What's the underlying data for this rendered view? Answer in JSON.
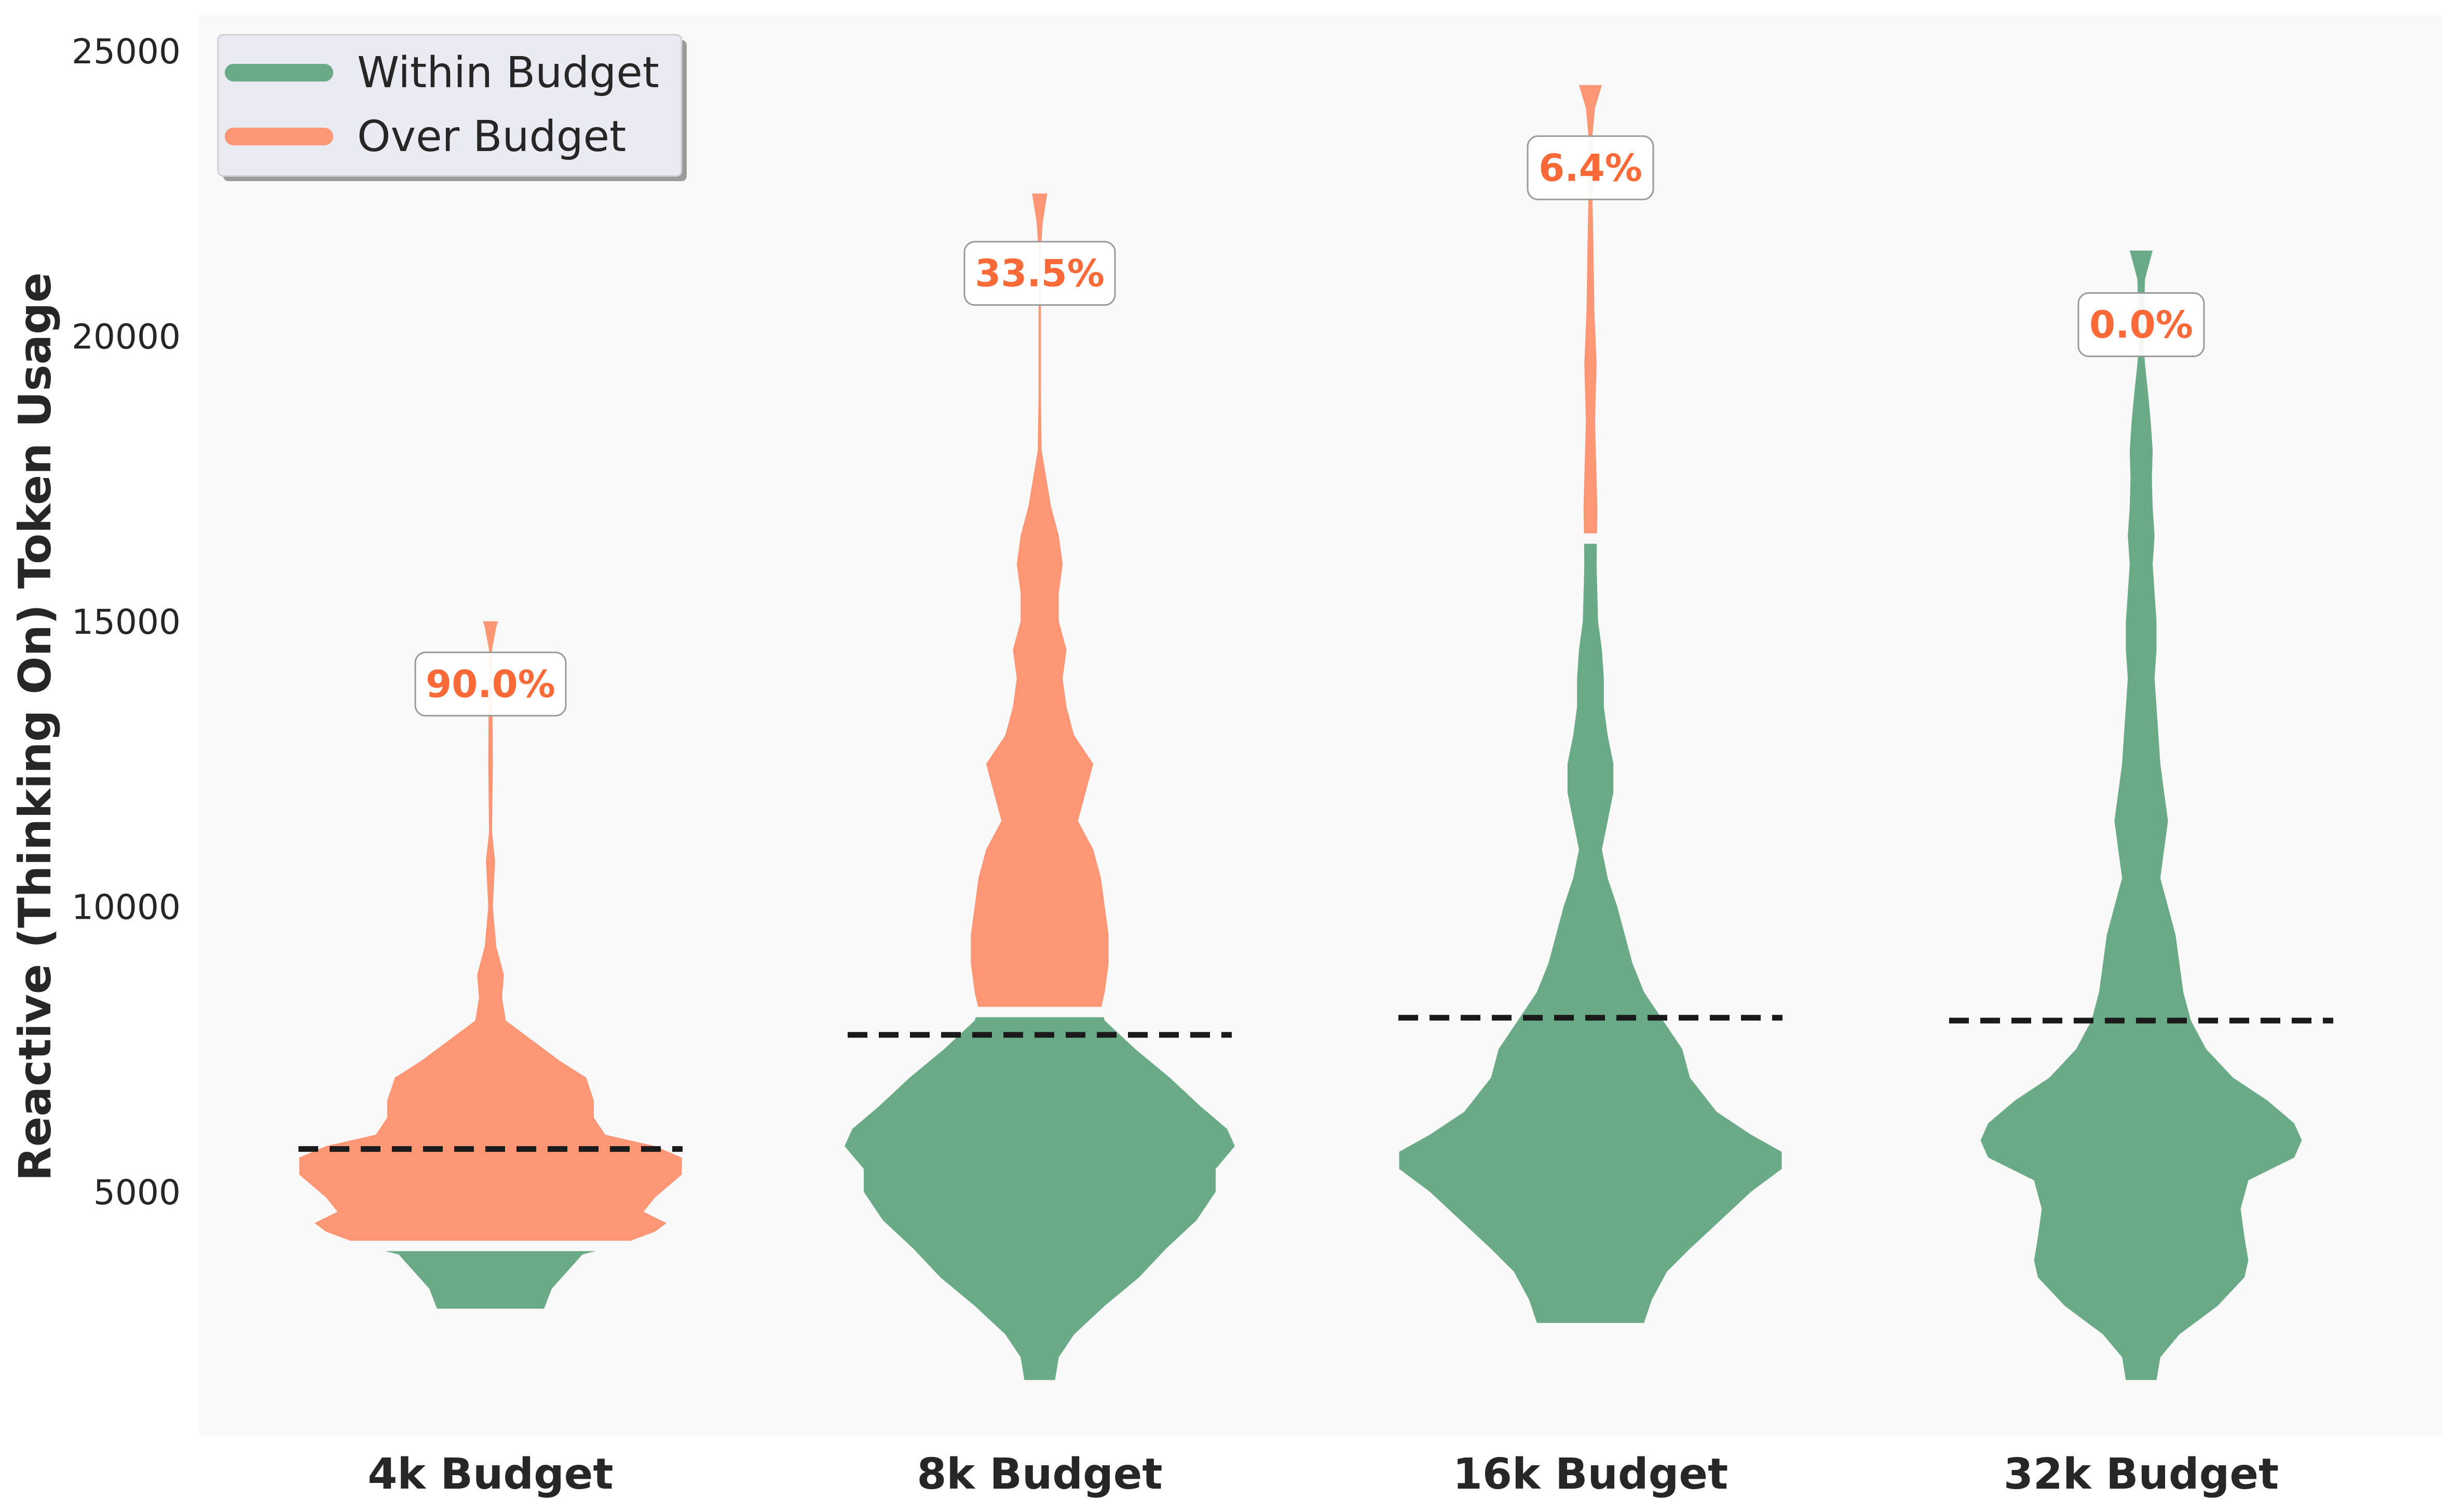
{
  "chart_data": {
    "type": "violin",
    "title": "",
    "xlabel": "",
    "ylabel": "Reactive (Thinking On) Token Usage",
    "ylim": [
      1000,
      25500
    ],
    "yticks": [
      5000,
      10000,
      15000,
      20000,
      25000
    ],
    "grid": false,
    "legend": {
      "placement": "top-left",
      "entries": [
        {
          "label": "Within Budget",
          "color": "#6aaa86"
        },
        {
          "label": "Over Budget",
          "color": "#fc9674"
        }
      ]
    },
    "colors": {
      "within": "#6aaa86",
      "over": "#fc9674",
      "pct_text": "#f96a38",
      "median_line": "#1a1a1a",
      "plot_bg": "#f9f9f9"
    },
    "categories": [
      {
        "label": "4k Budget",
        "over_budget_pct": "90.0%",
        "pct_label_y": 13900,
        "median": 5750,
        "budget_split": 4050,
        "min": 2950,
        "max": 15000,
        "profile": [
          [
            2950,
            0.14
          ],
          [
            3300,
            0.16
          ],
          [
            3600,
            0.2
          ],
          [
            3900,
            0.24
          ],
          [
            4050,
            0.33
          ],
          [
            4300,
            0.43
          ],
          [
            4450,
            0.46
          ],
          [
            4650,
            0.4
          ],
          [
            4900,
            0.43
          ],
          [
            5300,
            0.5
          ],
          [
            5600,
            0.5
          ],
          [
            5800,
            0.43
          ],
          [
            6000,
            0.3
          ],
          [
            6300,
            0.27
          ],
          [
            6600,
            0.27
          ],
          [
            7000,
            0.25
          ],
          [
            7300,
            0.18
          ],
          [
            7600,
            0.12
          ],
          [
            8000,
            0.04
          ],
          [
            8400,
            0.03
          ],
          [
            8800,
            0.035
          ],
          [
            9300,
            0.015
          ],
          [
            10000,
            0.006
          ],
          [
            10800,
            0.012
          ],
          [
            11300,
            0.004
          ],
          [
            12500,
            0.006
          ],
          [
            13500,
            0.005
          ],
          [
            14500,
            0.004
          ],
          [
            14900,
            0.015
          ],
          [
            15000,
            0.02
          ]
        ]
      },
      {
        "label": "8k Budget",
        "over_budget_pct": "33.5%",
        "pct_label_y": 21100,
        "median": 7750,
        "budget_split": 8150,
        "min": 1700,
        "max": 22500,
        "profile": [
          [
            1700,
            0.04
          ],
          [
            2100,
            0.05
          ],
          [
            2500,
            0.09
          ],
          [
            3000,
            0.17
          ],
          [
            3500,
            0.26
          ],
          [
            4000,
            0.33
          ],
          [
            4500,
            0.41
          ],
          [
            5000,
            0.46
          ],
          [
            5400,
            0.46
          ],
          [
            5800,
            0.51
          ],
          [
            6100,
            0.49
          ],
          [
            6500,
            0.42
          ],
          [
            7000,
            0.34
          ],
          [
            7500,
            0.25
          ],
          [
            8000,
            0.17
          ],
          [
            8200,
            0.16
          ],
          [
            8500,
            0.17
          ],
          [
            9000,
            0.18
          ],
          [
            9500,
            0.18
          ],
          [
            10000,
            0.17
          ],
          [
            10500,
            0.16
          ],
          [
            11000,
            0.14
          ],
          [
            11500,
            0.1
          ],
          [
            12000,
            0.12
          ],
          [
            12500,
            0.14
          ],
          [
            13000,
            0.09
          ],
          [
            13500,
            0.07
          ],
          [
            14000,
            0.06
          ],
          [
            14500,
            0.07
          ],
          [
            15000,
            0.05
          ],
          [
            15500,
            0.05
          ],
          [
            16000,
            0.06
          ],
          [
            16500,
            0.05
          ],
          [
            17000,
            0.03
          ],
          [
            18000,
            0.005
          ],
          [
            19000,
            0.003
          ],
          [
            20000,
            0.003
          ],
          [
            21500,
            0.003
          ],
          [
            22000,
            0.008
          ],
          [
            22500,
            0.02
          ]
        ]
      },
      {
        "label": "16k Budget",
        "over_budget_pct": "6.4%",
        "pct_label_y": 22950,
        "median": 8050,
        "budget_split": 16450,
        "min": 2700,
        "max": 24400,
        "profile": [
          [
            2700,
            0.14
          ],
          [
            3100,
            0.16
          ],
          [
            3600,
            0.2
          ],
          [
            4000,
            0.26
          ],
          [
            4500,
            0.34
          ],
          [
            5000,
            0.42
          ],
          [
            5400,
            0.5
          ],
          [
            5700,
            0.5
          ],
          [
            6000,
            0.42
          ],
          [
            6400,
            0.33
          ],
          [
            7000,
            0.26
          ],
          [
            7500,
            0.24
          ],
          [
            8000,
            0.19
          ],
          [
            8500,
            0.14
          ],
          [
            9000,
            0.11
          ],
          [
            9500,
            0.09
          ],
          [
            10000,
            0.07
          ],
          [
            10500,
            0.045
          ],
          [
            11000,
            0.03
          ],
          [
            11500,
            0.045
          ],
          [
            12000,
            0.06
          ],
          [
            12500,
            0.06
          ],
          [
            13000,
            0.045
          ],
          [
            13500,
            0.035
          ],
          [
            14000,
            0.035
          ],
          [
            14500,
            0.03
          ],
          [
            15000,
            0.02
          ],
          [
            16000,
            0.016
          ],
          [
            17000,
            0.018
          ],
          [
            17500,
            0.016
          ],
          [
            18500,
            0.012
          ],
          [
            19500,
            0.016
          ],
          [
            20500,
            0.01
          ],
          [
            21500,
            0.008
          ],
          [
            22500,
            0.005
          ],
          [
            23500,
            0.005
          ],
          [
            24000,
            0.012
          ],
          [
            24400,
            0.03
          ]
        ]
      },
      {
        "label": "32k Budget",
        "over_budget_pct": "0.0%",
        "pct_label_y": 20200,
        "median": 8000,
        "budget_split": null,
        "min": 1700,
        "max": 21500,
        "profile": [
          [
            1700,
            0.04
          ],
          [
            2100,
            0.05
          ],
          [
            2500,
            0.1
          ],
          [
            3000,
            0.2
          ],
          [
            3500,
            0.27
          ],
          [
            3800,
            0.28
          ],
          [
            4200,
            0.27
          ],
          [
            4700,
            0.26
          ],
          [
            5200,
            0.28
          ],
          [
            5600,
            0.4
          ],
          [
            5900,
            0.42
          ],
          [
            6200,
            0.4
          ],
          [
            6600,
            0.33
          ],
          [
            7000,
            0.24
          ],
          [
            7500,
            0.17
          ],
          [
            8000,
            0.13
          ],
          [
            8500,
            0.11
          ],
          [
            9000,
            0.1
          ],
          [
            9500,
            0.09
          ],
          [
            10000,
            0.07
          ],
          [
            10500,
            0.05
          ],
          [
            11000,
            0.06
          ],
          [
            11500,
            0.07
          ],
          [
            12000,
            0.06
          ],
          [
            12500,
            0.05
          ],
          [
            13000,
            0.045
          ],
          [
            13500,
            0.04
          ],
          [
            14000,
            0.035
          ],
          [
            14500,
            0.04
          ],
          [
            15000,
            0.04
          ],
          [
            15500,
            0.035
          ],
          [
            16000,
            0.03
          ],
          [
            16500,
            0.035
          ],
          [
            17000,
            0.03
          ],
          [
            17500,
            0.028
          ],
          [
            18000,
            0.03
          ],
          [
            18500,
            0.025
          ],
          [
            19000,
            0.018
          ],
          [
            19500,
            0.01
          ],
          [
            20000,
            0.005
          ],
          [
            21000,
            0.01
          ],
          [
            21500,
            0.03
          ]
        ]
      }
    ]
  }
}
